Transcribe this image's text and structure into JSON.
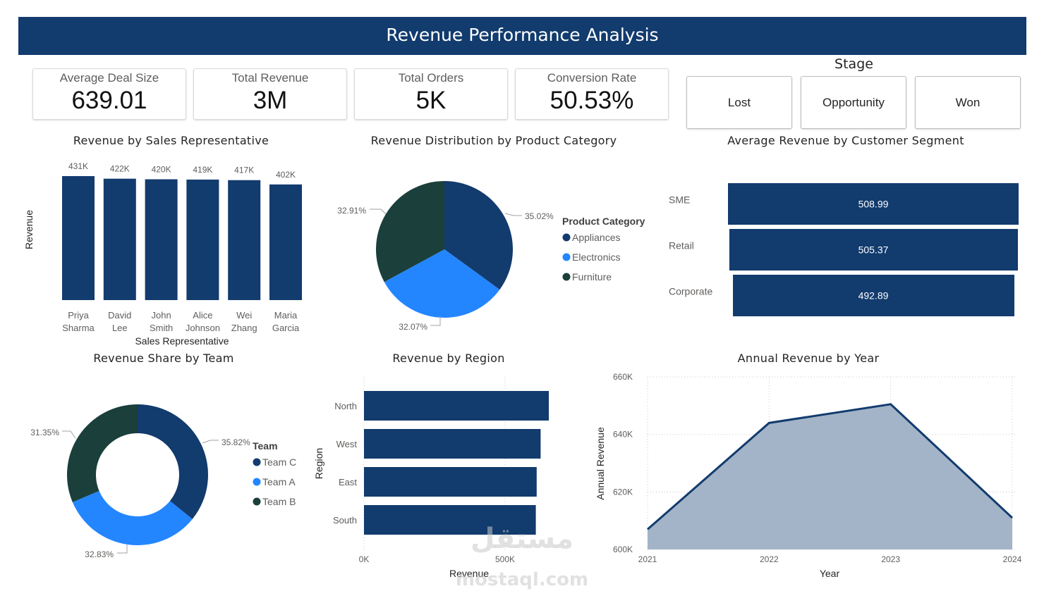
{
  "header": {
    "title": "Revenue Performance Analysis"
  },
  "kpis": [
    {
      "label": "Average Deal Size",
      "value": "639.01"
    },
    {
      "label": "Total Revenue",
      "value": "3M"
    },
    {
      "label": "Total Orders",
      "value": "5K"
    },
    {
      "label": "Conversion Rate",
      "value": "50.53%"
    }
  ],
  "stage_slicer": {
    "title": "Stage",
    "options": [
      "Lost",
      "Opportunity",
      "Won"
    ]
  },
  "colors": {
    "navy": "#123b6e",
    "blue": "#2386ff",
    "dark_green": "#1b3f3b",
    "area_fill": "#a3b4c8"
  },
  "watermark": {
    "arabic": "مستقل",
    "latin": "mostaql.com"
  },
  "chart_data": [
    {
      "id": "rep",
      "type": "bar",
      "title": "Revenue by Sales Representative",
      "xlabel": "Sales Representative",
      "ylabel": "Revenue",
      "categories": [
        [
          "Priya",
          "Sharma"
        ],
        [
          "David",
          "Lee"
        ],
        [
          "John",
          "Smith"
        ],
        [
          "Alice",
          "Johnson"
        ],
        [
          "Wei",
          "Zhang"
        ],
        [
          "Maria",
          "Garcia"
        ]
      ],
      "values": [
        431000,
        422000,
        420000,
        419000,
        417000,
        402000
      ],
      "data_labels": [
        "431K",
        "422K",
        "420K",
        "419K",
        "417K",
        "402K"
      ],
      "color": "#123b6e"
    },
    {
      "id": "category",
      "type": "pie",
      "title": "Revenue Distribution by Product Category",
      "legend_title": "Product Category",
      "slices": [
        {
          "name": "Appliances",
          "value": 35.02,
          "label": "35.02%",
          "color": "#123b6e"
        },
        {
          "name": "Electronics",
          "value": 32.07,
          "label": "32.07%",
          "color": "#2386ff"
        },
        {
          "name": "Furniture",
          "value": 32.91,
          "label": "32.91%",
          "color": "#1b3f3b"
        }
      ]
    },
    {
      "id": "segment",
      "type": "bar",
      "orientation": "horizontal",
      "title": "Average Revenue by Customer Segment",
      "categories": [
        "SME",
        "Retail",
        "Corporate"
      ],
      "values": [
        508.99,
        505.37,
        492.89
      ],
      "data_labels": [
        "508.99",
        "505.37",
        "492.89"
      ],
      "color": "#123b6e"
    },
    {
      "id": "team",
      "type": "pie",
      "variant": "donut",
      "title": "Revenue Share by Team",
      "legend_title": "Team",
      "slices": [
        {
          "name": "Team C",
          "value": 35.82,
          "label": "35.82%",
          "color": "#123b6e"
        },
        {
          "name": "Team A",
          "value": 32.83,
          "label": "32.83%",
          "color": "#2386ff"
        },
        {
          "name": "Team B",
          "value": 31.35,
          "label": "31.35%",
          "color": "#1b3f3b"
        }
      ]
    },
    {
      "id": "region",
      "type": "bar",
      "orientation": "horizontal",
      "title": "Revenue by Region",
      "xlabel": "Revenue",
      "ylabel": "Region",
      "categories": [
        "North",
        "West",
        "East",
        "South"
      ],
      "values": [
        655000,
        626000,
        612000,
        609000
      ],
      "xlim": [
        0,
        700000
      ],
      "x_ticks": [
        {
          "value": 0,
          "label": "0K"
        },
        {
          "value": 500000,
          "label": "500K"
        }
      ],
      "color": "#123b6e"
    },
    {
      "id": "year",
      "type": "area",
      "title": "Annual Revenue by Year",
      "xlabel": "Year",
      "ylabel": "Annual Revenue",
      "x": [
        "2021",
        "2022",
        "2023",
        "2024"
      ],
      "values": [
        607000,
        644000,
        650500,
        611000
      ],
      "ylim": [
        600000,
        660000
      ],
      "y_ticks": [
        {
          "value": 600000,
          "label": "600K"
        },
        {
          "value": 620000,
          "label": "620K"
        },
        {
          "value": 640000,
          "label": "640K"
        },
        {
          "value": 660000,
          "label": "660K"
        }
      ],
      "grid": true,
      "line_color": "#123b6e",
      "fill_color": "#a3b4c8"
    }
  ]
}
